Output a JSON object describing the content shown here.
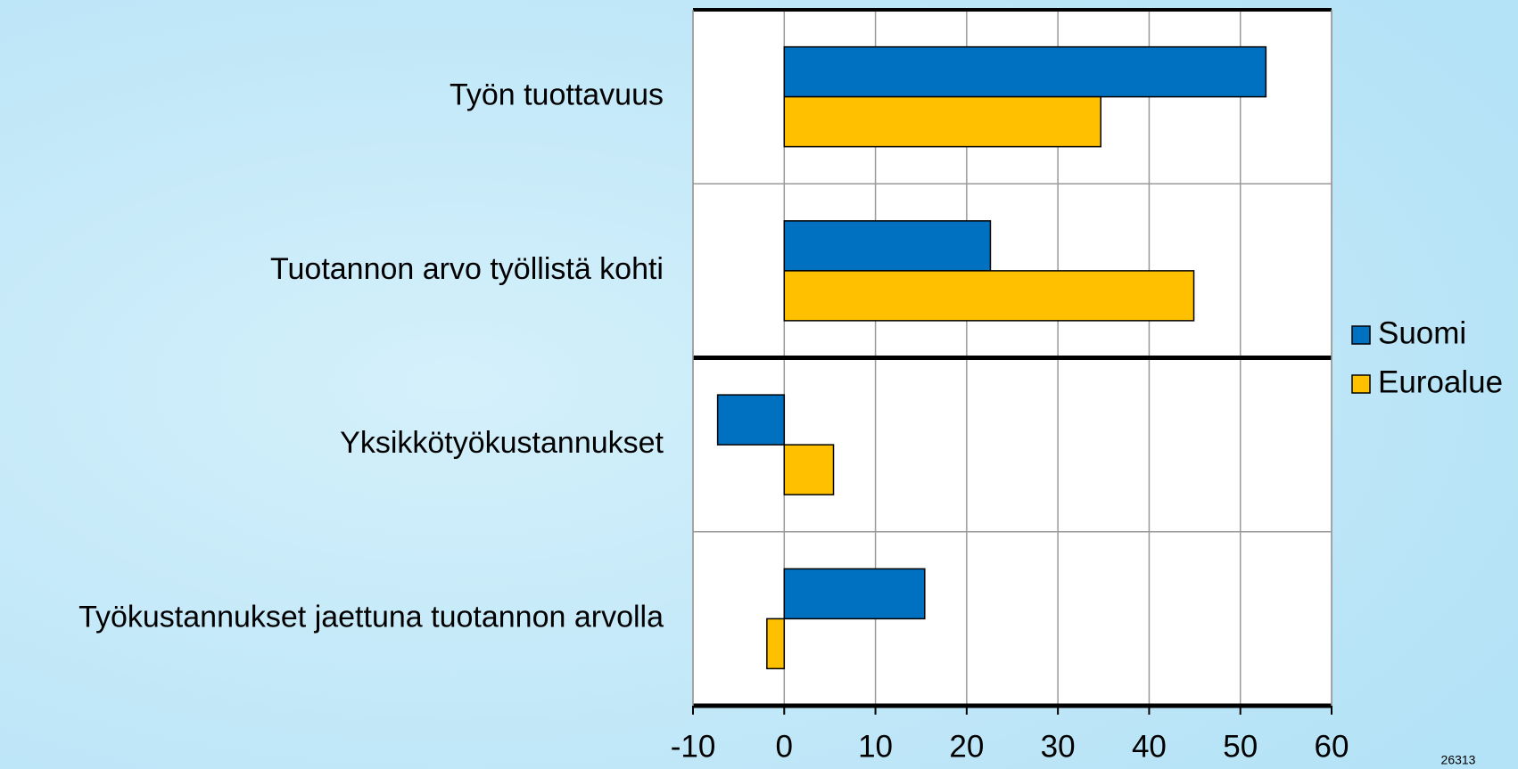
{
  "chart_data": {
    "type": "hbar",
    "categories": [
      "Työn tuottavuus",
      "Tuotannon arvo työllistä kohti",
      "Yksikkötyökustannukset",
      "Työkustannukset jaettuna tuotannon arvolla"
    ],
    "series": [
      {
        "name": "Suomi",
        "color": "#0070c0",
        "values": [
          52.8,
          22.6,
          -7.3,
          15.4
        ]
      },
      {
        "name": "Euroalue",
        "color": "#ffc000",
        "values": [
          34.7,
          44.9,
          5.4,
          -1.9
        ]
      }
    ],
    "xlim": [
      -10,
      60
    ],
    "xticks": [
      -10,
      0,
      10,
      20,
      30,
      40,
      50,
      60
    ],
    "grid": true,
    "note": "26313"
  }
}
